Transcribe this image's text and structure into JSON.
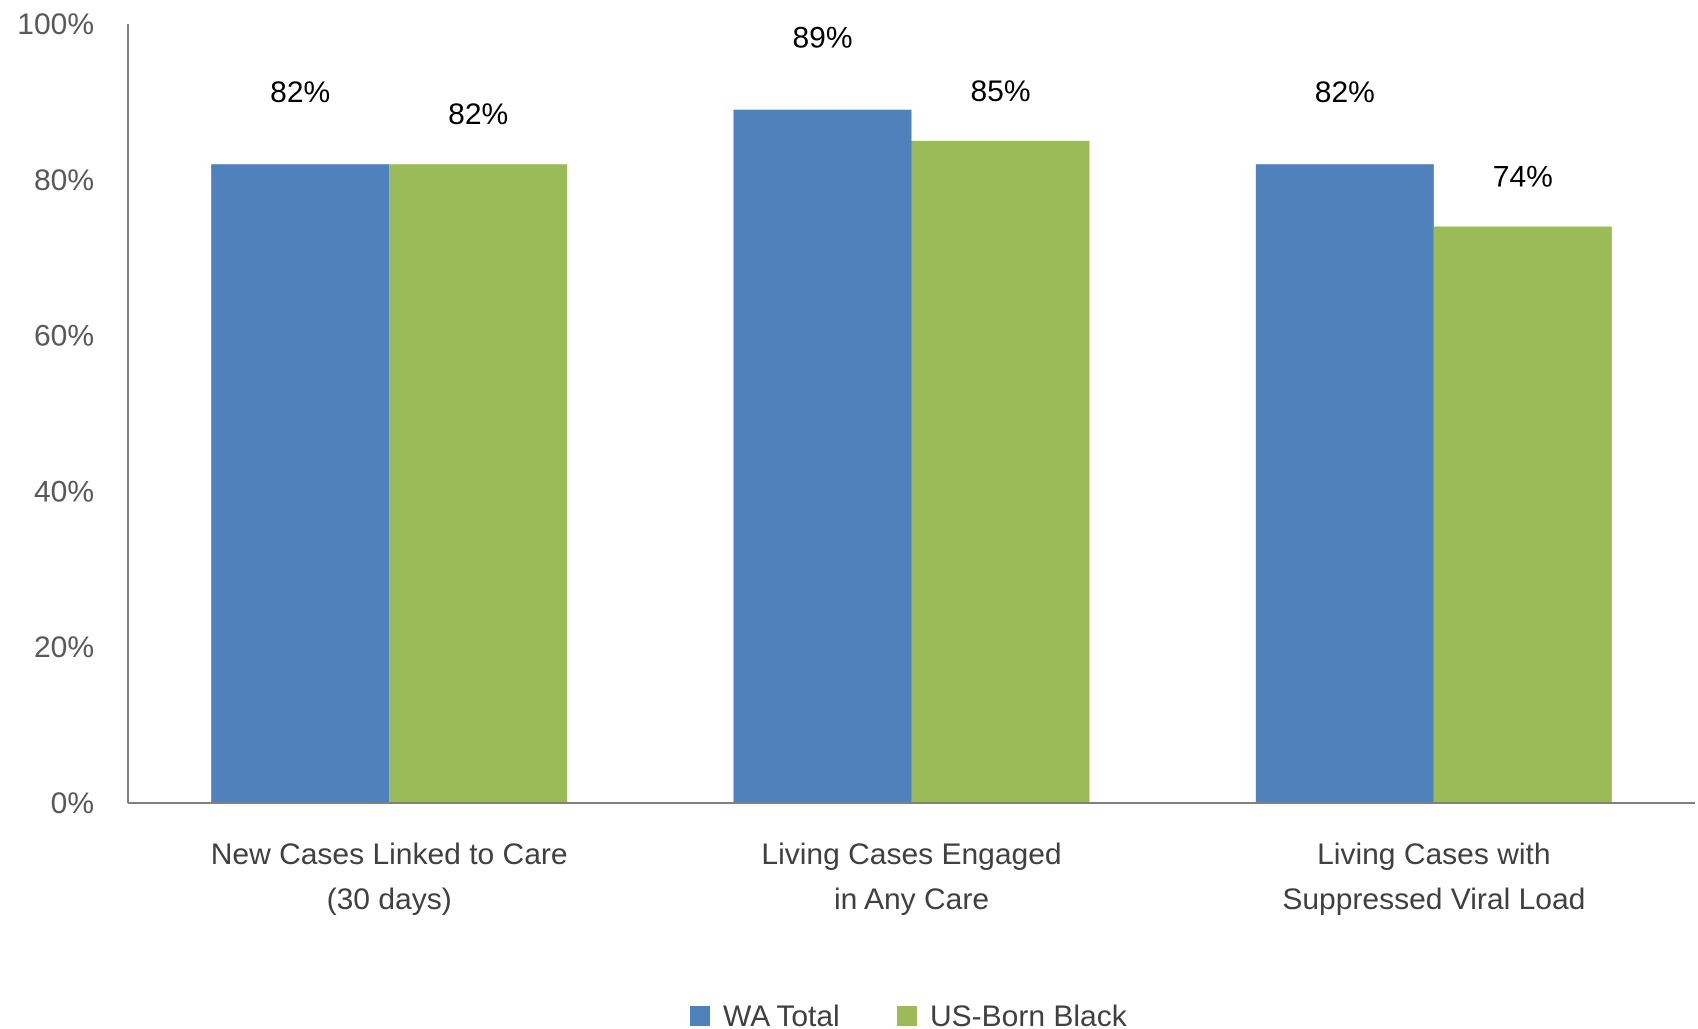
{
  "chart_data": {
    "type": "bar",
    "categories": [
      [
        "New Cases Linked to Care",
        "(30 days)"
      ],
      [
        "Living Cases Engaged",
        "in Any Care"
      ],
      [
        "Living Cases with",
        "Suppressed Viral Load"
      ]
    ],
    "series": [
      {
        "name": "WA Total",
        "color": "#4F81BD",
        "values": [
          82,
          89,
          82
        ],
        "labels": [
          "82%",
          "89%",
          "82%"
        ]
      },
      {
        "name": "US-Born Black",
        "color": "#9BBB59",
        "values": [
          82,
          85,
          74
        ],
        "labels": [
          "82%",
          "85%",
          "74%"
        ]
      }
    ],
    "ylim": [
      0,
      100
    ],
    "yticks": [
      0,
      20,
      40,
      60,
      80,
      100
    ],
    "ytick_labels": [
      "0%",
      "20%",
      "40%",
      "60%",
      "80%",
      "100%"
    ],
    "grid": false,
    "legend_position": "bottom"
  }
}
